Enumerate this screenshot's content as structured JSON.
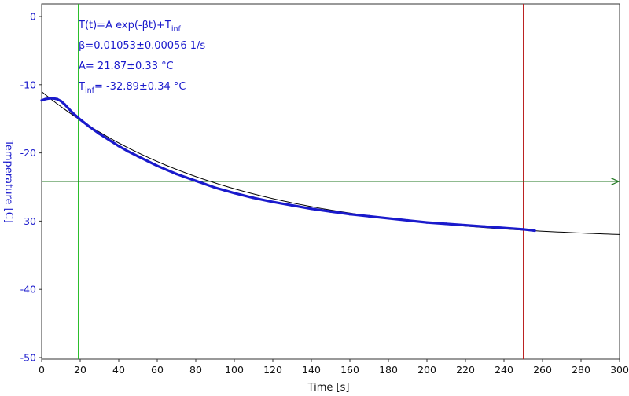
{
  "chart_data": {
    "type": "scatter",
    "xlabel": "Time [s]",
    "ylabel": "Temperature [C]",
    "xlim": [
      0,
      300
    ],
    "ylim": [
      -50,
      2
    ],
    "x_ticks": [
      0,
      20,
      40,
      60,
      80,
      100,
      120,
      140,
      160,
      180,
      200,
      220,
      240,
      260,
      280,
      300
    ],
    "y_ticks": [
      0,
      -10,
      -20,
      -30,
      -40,
      -50
    ],
    "grid": false,
    "annotation_lines": [
      {
        "parts": [
          {
            "t": "T(t)=A exp(-βt)+T"
          },
          {
            "t": "inf",
            "sub": true
          }
        ]
      },
      {
        "parts": [
          {
            "t": "β=0.01053±0.00056 1/s"
          }
        ]
      },
      {
        "parts": [
          {
            "t": "A= 21.87±0.33 °C"
          }
        ]
      },
      {
        "parts": [
          {
            "t": "T"
          },
          {
            "t": "inf",
            "sub": true
          },
          {
            "t": "= -32.89±0.34 °C"
          }
        ]
      }
    ],
    "fit": {
      "model": "T(t)=A exp(-βt)+T_inf",
      "beta": 0.01053,
      "A": 21.87,
      "T_inf": -32.89,
      "x_range": [
        0,
        300
      ],
      "color": "#000000"
    },
    "series": [
      {
        "color": "#1a1acc",
        "points": [
          {
            "x": 0,
            "y": -12.3
          },
          {
            "x": 2,
            "y": -12.1
          },
          {
            "x": 4,
            "y": -12.0
          },
          {
            "x": 6,
            "y": -12.0
          },
          {
            "x": 8,
            "y": -12.1
          },
          {
            "x": 10,
            "y": -12.4
          },
          {
            "x": 12,
            "y": -12.9
          },
          {
            "x": 14,
            "y": -13.5
          },
          {
            "x": 16,
            "y": -14.1
          },
          {
            "x": 18,
            "y": -14.6
          },
          {
            "x": 20,
            "y": -15.1
          },
          {
            "x": 25,
            "y": -16.2
          },
          {
            "x": 30,
            "y": -17.2
          },
          {
            "x": 35,
            "y": -18.1
          },
          {
            "x": 40,
            "y": -19.0
          },
          {
            "x": 45,
            "y": -19.8
          },
          {
            "x": 50,
            "y": -20.5
          },
          {
            "x": 55,
            "y": -21.2
          },
          {
            "x": 60,
            "y": -21.9
          },
          {
            "x": 65,
            "y": -22.5
          },
          {
            "x": 70,
            "y": -23.1
          },
          {
            "x": 75,
            "y": -23.6
          },
          {
            "x": 80,
            "y": -24.1
          },
          {
            "x": 85,
            "y": -24.6
          },
          {
            "x": 90,
            "y": -25.1
          },
          {
            "x": 95,
            "y": -25.5
          },
          {
            "x": 100,
            "y": -25.9
          },
          {
            "x": 110,
            "y": -26.6
          },
          {
            "x": 120,
            "y": -27.2
          },
          {
            "x": 130,
            "y": -27.7
          },
          {
            "x": 140,
            "y": -28.2
          },
          {
            "x": 150,
            "y": -28.6
          },
          {
            "x": 160,
            "y": -29.0
          },
          {
            "x": 170,
            "y": -29.3
          },
          {
            "x": 180,
            "y": -29.6
          },
          {
            "x": 190,
            "y": -29.9
          },
          {
            "x": 200,
            "y": -30.2
          },
          {
            "x": 210,
            "y": -30.4
          },
          {
            "x": 220,
            "y": -30.6
          },
          {
            "x": 230,
            "y": -30.8
          },
          {
            "x": 240,
            "y": -31.0
          },
          {
            "x": 250,
            "y": -31.2
          },
          {
            "x": 256,
            "y": -31.4
          }
        ]
      }
    ],
    "cursors": {
      "vertical": [
        {
          "x": 19,
          "color": "#22bb22"
        },
        {
          "x": 250,
          "color": "#bb2222"
        }
      ],
      "horizontal": [
        {
          "y": -24.2,
          "color": "#227722",
          "arrow": true
        }
      ]
    }
  }
}
